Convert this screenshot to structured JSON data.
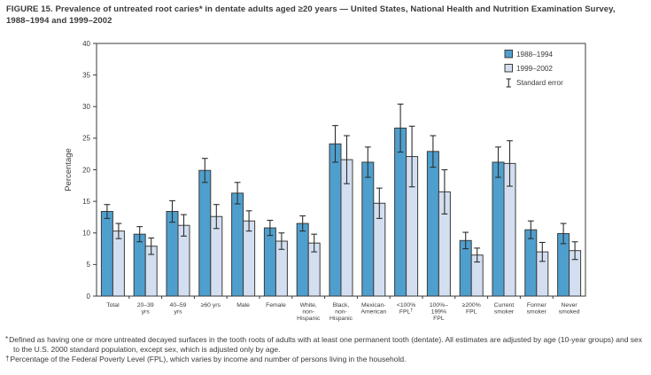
{
  "figure": {
    "title": "FIGURE 15. Prevalence of untreated root caries* in dentate adults aged ≥20 years — United States, National Health and Nutrition Examination Survey, 1988–1994 and 1999–2002"
  },
  "footnotes": [
    {
      "marker": "*",
      "text": "Defined as having one or more untreated decayed surfaces in the tooth roots of adults with at least one permanent tooth (dentate). All estimates are adjusted by age (10-year groups) and sex to the U.S. 2000 standard population, except sex, which is adjusted only by age."
    },
    {
      "marker": "†",
      "text": "Percentage of the Federal Poverty Level (FPL), which varies by income and number of persons living in the household."
    }
  ],
  "chart_data": {
    "type": "bar",
    "title": "",
    "xlabel": "",
    "ylabel": "Percentage",
    "ylim": [
      0,
      40
    ],
    "ytick_interval": 5,
    "yticks": [
      0,
      5,
      10,
      15,
      20,
      25,
      30,
      35,
      40
    ],
    "grid": false,
    "legend_position": "top-right-inside",
    "error_legend_label": "Standard error",
    "categories": [
      "Total",
      "20–39 yrs",
      "40–59 yrs",
      "≥60 yrs",
      "Male",
      "Female",
      "White, non-Hispanic",
      "Black, non-Hispanic",
      "Mexican-American",
      "<100% FPL†",
      "100%–199% FPL",
      "≥200% FPL",
      "Current smoker",
      "Former smoker",
      "Never smoked"
    ],
    "category_label_lines": [
      [
        "Total"
      ],
      [
        "20–39",
        "yrs"
      ],
      [
        "40–59",
        "yrs"
      ],
      [
        "≥60 yrs"
      ],
      [
        "Male"
      ],
      [
        "Female"
      ],
      [
        "White,",
        "non-",
        "Hispanic"
      ],
      [
        "Black,",
        "non-",
        "Hispanic"
      ],
      [
        "Mexican-",
        "American"
      ],
      [
        "<100%",
        "FPL†"
      ],
      [
        "100%–",
        "199%",
        "FPL"
      ],
      [
        "≥200%",
        "FPL"
      ],
      [
        "Current",
        "smoker"
      ],
      [
        "Former",
        "smoker"
      ],
      [
        "Never",
        "smoked"
      ]
    ],
    "series": [
      {
        "name": "1988–1994",
        "color": "#4E9FCD",
        "values": [
          13.4,
          9.8,
          13.4,
          19.9,
          16.3,
          10.8,
          11.5,
          24.1,
          21.2,
          26.6,
          22.9,
          8.8,
          21.2,
          10.5,
          9.9
        ],
        "standard_errors": [
          1.1,
          1.2,
          1.7,
          1.9,
          1.7,
          1.2,
          1.2,
          2.9,
          2.4,
          3.8,
          2.5,
          1.3,
          2.4,
          1.4,
          1.6
        ]
      },
      {
        "name": "1999–2002",
        "color": "#D3DFF0",
        "values": [
          10.3,
          7.9,
          11.2,
          12.6,
          11.9,
          8.7,
          8.4,
          21.6,
          14.7,
          22.1,
          16.5,
          6.5,
          21.0,
          7.0,
          7.2
        ],
        "standard_errors": [
          1.2,
          1.3,
          1.7,
          1.9,
          1.6,
          1.3,
          1.4,
          3.8,
          2.4,
          4.8,
          3.5,
          1.1,
          3.6,
          1.5,
          1.4
        ]
      }
    ],
    "colors": {
      "bar_border": "#3b3b3b",
      "axis": "#3b3b3b",
      "error_bar": "#2e2e2e",
      "text": "#3a3a3a",
      "background": "#ffffff"
    }
  }
}
